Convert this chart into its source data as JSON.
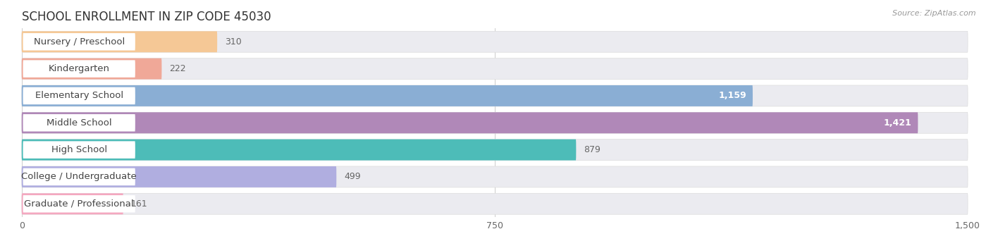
{
  "title": "SCHOOL ENROLLMENT IN ZIP CODE 45030",
  "source": "Source: ZipAtlas.com",
  "categories": [
    "Nursery / Preschool",
    "Kindergarten",
    "Elementary School",
    "Middle School",
    "High School",
    "College / Undergraduate",
    "Graduate / Professional"
  ],
  "values": [
    310,
    222,
    1159,
    1421,
    879,
    499,
    161
  ],
  "bar_colors": [
    "#f5c896",
    "#f0a898",
    "#8aaed4",
    "#b088b8",
    "#4dbcb8",
    "#b0aee0",
    "#f4a8c0"
  ],
  "bar_bg_color": "#ebebf0",
  "label_bg_color": "#ffffff",
  "xlim": [
    0,
    1500
  ],
  "xticks": [
    0,
    750,
    1500
  ],
  "title_fontsize": 12,
  "label_fontsize": 9.5,
  "value_fontsize": 9,
  "figsize": [
    14.06,
    3.42
  ],
  "dpi": 100
}
